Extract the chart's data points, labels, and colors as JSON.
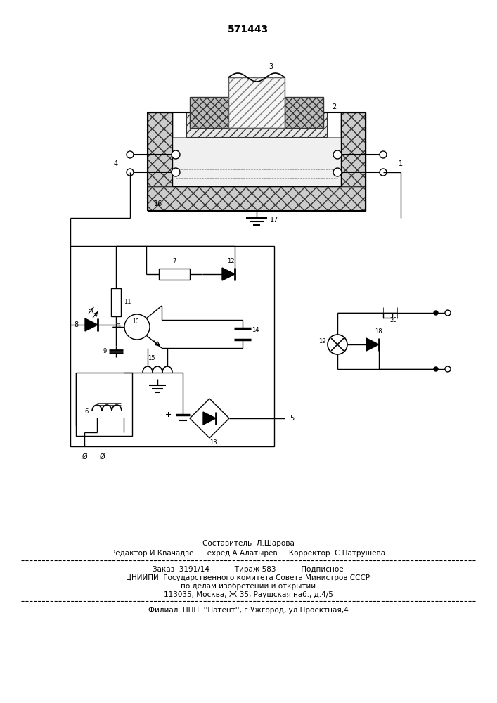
{
  "patent_number": "571443",
  "bg": "#ffffff",
  "lc": "#000000",
  "footer1": "Составитель  Л.Шарова",
  "footer2": "Редактор И.Квачадзе    Техред А.Алатырев     Корректор  С.Патрушева",
  "footer3a": "Заказ  3191/14           Тираж 583           Подписное",
  "footer3b": "ЦНИИПИ  Государственного комитета Совета Министров СССР",
  "footer3c": "по делам изобретений и открытий",
  "footer3d": "113035, Москва, Ж-35, Раушская наб., д.4/5",
  "footer4": "Филиал  ППП  ''Патент'', г.Ужгород, ул.Проектная,4"
}
